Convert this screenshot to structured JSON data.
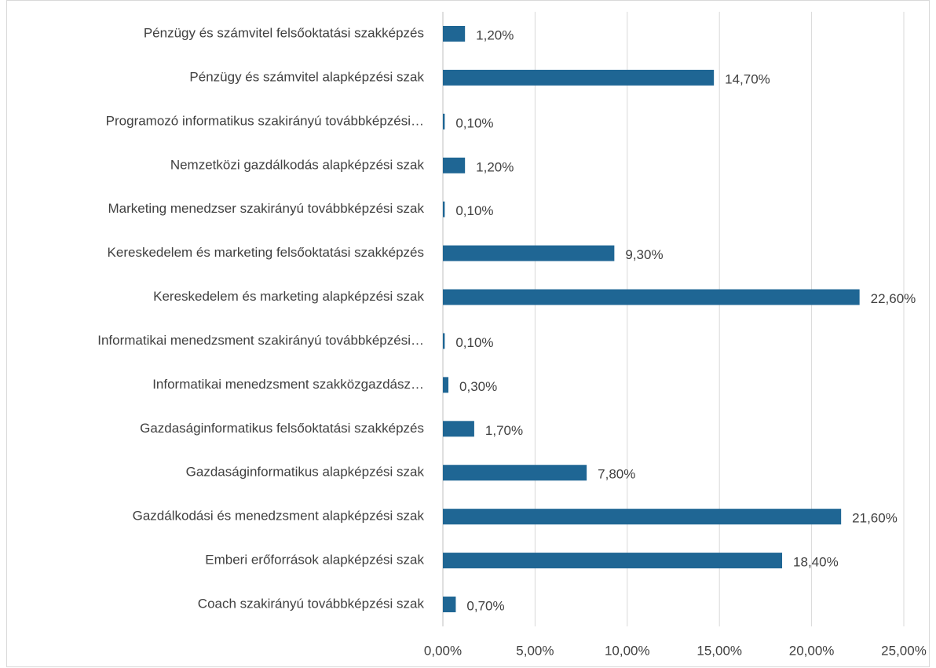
{
  "chart_data": {
    "type": "bar",
    "orientation": "horizontal",
    "categories": [
      "Pénzügy és számvitel felsőoktatási szakképzés",
      "Pénzügy és számvitel alapképzési szak",
      "Programozó informatikus szakirányú továbbképzési…",
      "Nemzetközi gazdálkodás alapképzési szak",
      "Marketing menedzser szakirányú továbbképzési szak",
      "Kereskedelem és marketing felsőoktatási szakképzés",
      "Kereskedelem és marketing alapképzési szak",
      "Informatikai menedzsment szakirányú továbbképzési…",
      "Informatikai menedzsment szakközgazdász…",
      "Gazdaságinformatikus felsőoktatási szakképzés",
      "Gazdaságinformatikus alapképzési szak",
      "Gazdálkodási és menedzsment alapképzési szak",
      "Emberi erőforrások alapképzési szak",
      "Coach szakirányú továbbképzési szak"
    ],
    "values": [
      1.2,
      14.7,
      0.1,
      1.2,
      0.1,
      9.3,
      22.6,
      0.1,
      0.3,
      1.7,
      7.8,
      21.6,
      18.4,
      0.7
    ],
    "value_labels": [
      "1,20%",
      "14,70%",
      "0,10%",
      "1,20%",
      "0,10%",
      "9,30%",
      "22,60%",
      "0,10%",
      "0,30%",
      "1,70%",
      "7,80%",
      "21,60%",
      "18,40%",
      "0,70%"
    ],
    "color": "#1f6694",
    "xlim": [
      0,
      25
    ],
    "xticks": [
      {
        "value": 0,
        "label": "0,00%"
      },
      {
        "value": 5,
        "label": "5,00%"
      },
      {
        "value": 10,
        "label": "10,00%"
      },
      {
        "value": 15,
        "label": "15,00%"
      },
      {
        "value": 20,
        "label": "20,00%"
      },
      {
        "value": 25,
        "label": "25,00%"
      }
    ],
    "grid": true
  }
}
